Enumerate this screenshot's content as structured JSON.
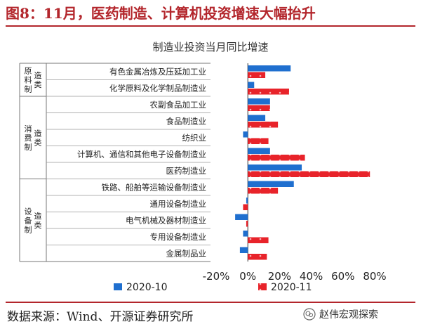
{
  "figure_title": "图8：11月，医药制造、计算机投资增速大幅抬升",
  "source_note": "数据来源：Wind、开源证券研究所",
  "watermark_text": "赵伟宏观探索",
  "colors": {
    "title_red": "#b3262c",
    "series_blue": "#1f6fcf",
    "series_red": "#e8232a"
  },
  "chart_data": {
    "type": "bar",
    "orientation": "horizontal",
    "title": "制造业投资当月同比增速",
    "groups": [
      {
        "label": "原料制造类",
        "categories": [
          "有色金属冶炼及压延加工业",
          "化学原料及化学制品制造业"
        ]
      },
      {
        "label": "消费制造类",
        "categories": [
          "农副食品加工业",
          "食品制造业",
          "纺织业",
          "计算机、通信和其他电子设备制造业",
          "医药制造业"
        ]
      },
      {
        "label": "设备制造类",
        "categories": [
          "铁路、船舶等运输设备制造业",
          "通用设备制造业",
          "电气机械及器材制造业",
          "专用设备制造业",
          "金属制品业"
        ]
      }
    ],
    "categories": [
      "有色金属冶炼及压延加工业",
      "化学原料及化学制品制造业",
      "农副食品加工业",
      "食品制造业",
      "纺织业",
      "计算机、通信和其他电子设备制造业",
      "医药制造业",
      "铁路、船舶等运输设备制造业",
      "通用设备制造业",
      "电气机械及器材制造业",
      "专用设备制造业",
      "金属制品业"
    ],
    "series": [
      {
        "name": "2020-10",
        "values": [
          27,
          4,
          14,
          11,
          -3,
          14,
          34,
          29,
          -1,
          -8,
          -3,
          -5
        ]
      },
      {
        "name": "2020-11",
        "values": [
          11,
          26,
          14,
          19,
          13,
          36,
          77,
          19,
          -3,
          -1,
          13,
          12
        ]
      }
    ],
    "xlim": [
      -20,
      80
    ],
    "xticks": [
      -20,
      0,
      20,
      40,
      60,
      80
    ],
    "tick_labels": [
      "-20%",
      "0%",
      "20%",
      "40%",
      "60%",
      "80%"
    ],
    "legend_position": "bottom",
    "grid": false
  }
}
